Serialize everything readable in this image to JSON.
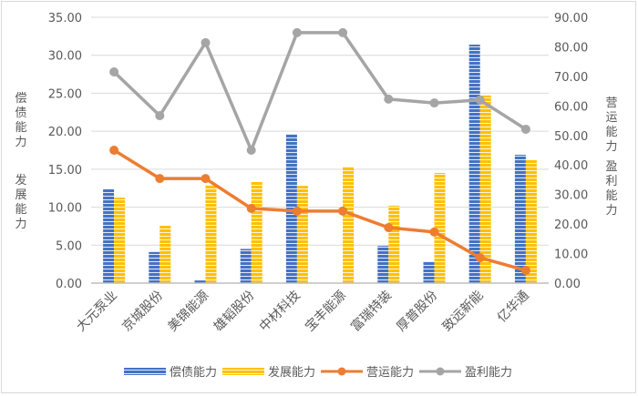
{
  "chart_data": {
    "type": "bar",
    "title": "",
    "categories": [
      "大元泵业",
      "京城股份",
      "美锦能源",
      "雄韬股份",
      "中材科技",
      "宝丰能源",
      "富瑞特装",
      "厚普股份",
      "致远新能",
      "亿华通"
    ],
    "series": [
      {
        "name": "偿债能力",
        "type": "bar",
        "axis": "left",
        "color": "#4472C4",
        "values": [
          12.35,
          4.1,
          0.35,
          4.5,
          19.65,
          0.0,
          4.9,
          2.85,
          31.4,
          16.9
        ]
      },
      {
        "name": "发展能力",
        "type": "bar",
        "axis": "left",
        "color": "#FFC000",
        "values": [
          11.25,
          7.55,
          12.95,
          13.3,
          12.8,
          15.35,
          10.2,
          14.5,
          24.7,
          16.2
        ]
      },
      {
        "name": "营运能力",
        "type": "line",
        "axis": "right",
        "color": "#ED7D31",
        "values": [
          45.0,
          35.4,
          35.4,
          25.3,
          24.4,
          24.4,
          18.8,
          17.3,
          8.6,
          4.3
        ]
      },
      {
        "name": "盈利能力",
        "type": "line",
        "axis": "right",
        "color": "#A5A5A5",
        "values": [
          71.5,
          56.7,
          81.4,
          45.0,
          84.8,
          84.8,
          62.3,
          61.0,
          62.0,
          52.1
        ]
      }
    ],
    "left_axis": {
      "label_lines": [
        "偿债能力",
        "发展能力"
      ],
      "ylim": [
        0,
        35
      ],
      "ticks": [
        "0.00",
        "5.00",
        "10.00",
        "15.00",
        "20.00",
        "25.00",
        "30.00",
        "35.00"
      ]
    },
    "right_axis": {
      "label_lines": [
        "营运能力",
        "盈利能力"
      ],
      "ylim": [
        0,
        90
      ],
      "ticks": [
        "0.00",
        "10.00",
        "20.00",
        "30.00",
        "40.00",
        "50.00",
        "60.00",
        "70.00",
        "80.00",
        "90.00"
      ]
    },
    "grid": true,
    "legend_position": "bottom"
  },
  "legend": {
    "items": [
      {
        "label": "偿债能力"
      },
      {
        "label": "发展能力"
      },
      {
        "label": "营运能力"
      },
      {
        "label": "盈利能力"
      }
    ]
  },
  "axis_titles": {
    "left_top": "偿债能力",
    "left_bottom": "发展能力",
    "right_top": "营运能力",
    "right_bottom": "盈利能力"
  }
}
